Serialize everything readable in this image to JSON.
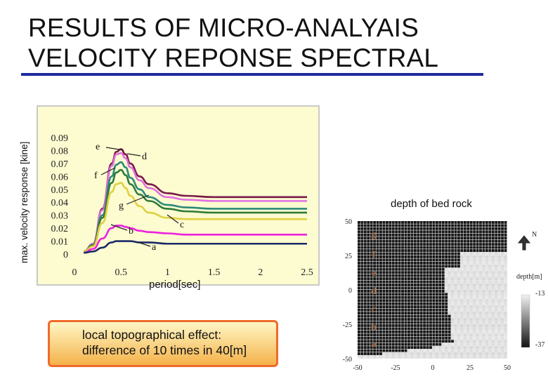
{
  "title_line1": "RESULTS OF MICRO-ANALYAIS",
  "title_line2": "VELOCITY REPONSE SPECTRAL",
  "chart_data": {
    "type": "line",
    "ylabel": "max. velocity response [kine]",
    "xlabel": "period[sec]",
    "xlim": [
      0,
      2.5
    ],
    "ylim": [
      0,
      0.09
    ],
    "x_ticks": [
      "0",
      "0.5",
      "1",
      "1.5",
      "2",
      "2.5"
    ],
    "y_ticks": [
      "0",
      "0.01",
      "0.02",
      "0.03",
      "0.04",
      "0.05",
      "0.06",
      "0.07",
      "0.08",
      "0.09"
    ],
    "x": [
      0.1,
      0.2,
      0.3,
      0.4,
      0.45,
      0.5,
      0.55,
      0.6,
      0.7,
      0.8,
      1.0,
      1.2,
      1.5,
      2.0,
      2.5
    ],
    "series": [
      {
        "name": "e",
        "color": "#7a1a4a",
        "values": [
          0.002,
          0.008,
          0.035,
          0.07,
          0.079,
          0.081,
          0.077,
          0.07,
          0.06,
          0.054,
          0.047,
          0.045,
          0.044,
          0.044,
          0.044
        ]
      },
      {
        "name": "d",
        "color": "#e070e0",
        "values": [
          0.002,
          0.008,
          0.034,
          0.068,
          0.077,
          0.078,
          0.074,
          0.067,
          0.057,
          0.051,
          0.044,
          0.042,
          0.041,
          0.041,
          0.041
        ]
      },
      {
        "name": "f",
        "color": "#2a8a7a",
        "values": [
          0.002,
          0.007,
          0.03,
          0.06,
          0.069,
          0.071,
          0.067,
          0.059,
          0.05,
          0.044,
          0.038,
          0.036,
          0.035,
          0.035,
          0.035
        ]
      },
      {
        "name": "g",
        "color": "#2f7a3a",
        "values": [
          0.002,
          0.007,
          0.028,
          0.055,
          0.063,
          0.065,
          0.061,
          0.054,
          0.046,
          0.041,
          0.035,
          0.033,
          0.032,
          0.032,
          0.032
        ]
      },
      {
        "name": "c",
        "color": "#e0d040",
        "values": [
          0.002,
          0.006,
          0.024,
          0.048,
          0.054,
          0.055,
          0.051,
          0.045,
          0.037,
          0.032,
          0.028,
          0.027,
          0.027,
          0.027,
          0.027
        ]
      },
      {
        "name": "b",
        "color": "#ee20e0",
        "values": [
          0.001,
          0.004,
          0.012,
          0.02,
          0.022,
          0.022,
          0.021,
          0.02,
          0.018,
          0.017,
          0.016,
          0.015,
          0.015,
          0.015,
          0.015
        ]
      },
      {
        "name": "a",
        "color": "#1a2a6a",
        "values": [
          0.001,
          0.002,
          0.005,
          0.009,
          0.01,
          0.01,
          0.01,
          0.01,
          0.009,
          0.009,
          0.008,
          0.008,
          0.008,
          0.008,
          0.008
        ]
      }
    ],
    "annotations": [
      "e",
      "d",
      "f",
      "g",
      "c",
      "b",
      "a"
    ]
  },
  "note_line1": "local topographical effect:",
  "note_line2": "difference of 10 times in 40[m]",
  "map": {
    "title": "depth of bed rock",
    "x_ticks": [
      "-50",
      "-25",
      "0",
      "25",
      "50"
    ],
    "y_ticks": [
      "50",
      "25",
      "0",
      "-25",
      "-50"
    ],
    "north_label": "N",
    "legend_label": "depth[m]",
    "legend_max": "-13",
    "legend_min": "-37",
    "points": [
      "g",
      "f",
      "e",
      "d",
      "c",
      "b",
      "a"
    ],
    "colors": {
      "deep": "#1c1c1c",
      "shallow": "#e8e8e8",
      "point_text": "#a07050"
    }
  }
}
